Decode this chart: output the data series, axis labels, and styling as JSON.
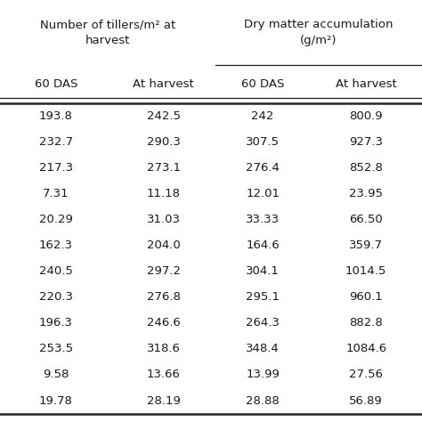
{
  "col_headers_row1_left": "Number of tillers/m² at\nharvest",
  "col_headers_row1_right": "Dry matter accumulation\n(g/m²)",
  "col_headers_row2": [
    "60 DAS",
    "At harvest",
    "60 DAS",
    "At harvest"
  ],
  "rows": [
    [
      "193.8",
      "242.5",
      "242",
      "800.9"
    ],
    [
      "232.7",
      "290.3",
      "307.5",
      "927.3"
    ],
    [
      "217.3",
      "273.1",
      "276.4",
      "852.8"
    ],
    [
      "7.31",
      "11.18",
      "12.01",
      "23.95"
    ],
    [
      "20.29",
      "31.03",
      "33.33",
      "66.50"
    ],
    [
      "162.3",
      "204.0",
      "164.6",
      "359.7"
    ],
    [
      "240.5",
      "297.2",
      "304.1",
      "1014.5"
    ],
    [
      "220.3",
      "276.8",
      "295.1",
      "960.1"
    ],
    [
      "196.3",
      "246.6",
      "264.3",
      "882.8"
    ],
    [
      "253.5",
      "318.6",
      "348.4",
      "1084.6"
    ],
    [
      "9.58",
      "13.66",
      "13.99",
      "27.56"
    ],
    [
      "19.78",
      "28.19",
      "28.88",
      "56.89"
    ]
  ],
  "background_color": "#ffffff",
  "text_color": "#1a1a1a",
  "line_color": "#222222",
  "figsize": [
    4.74,
    4.74
  ],
  "dpi": 100
}
